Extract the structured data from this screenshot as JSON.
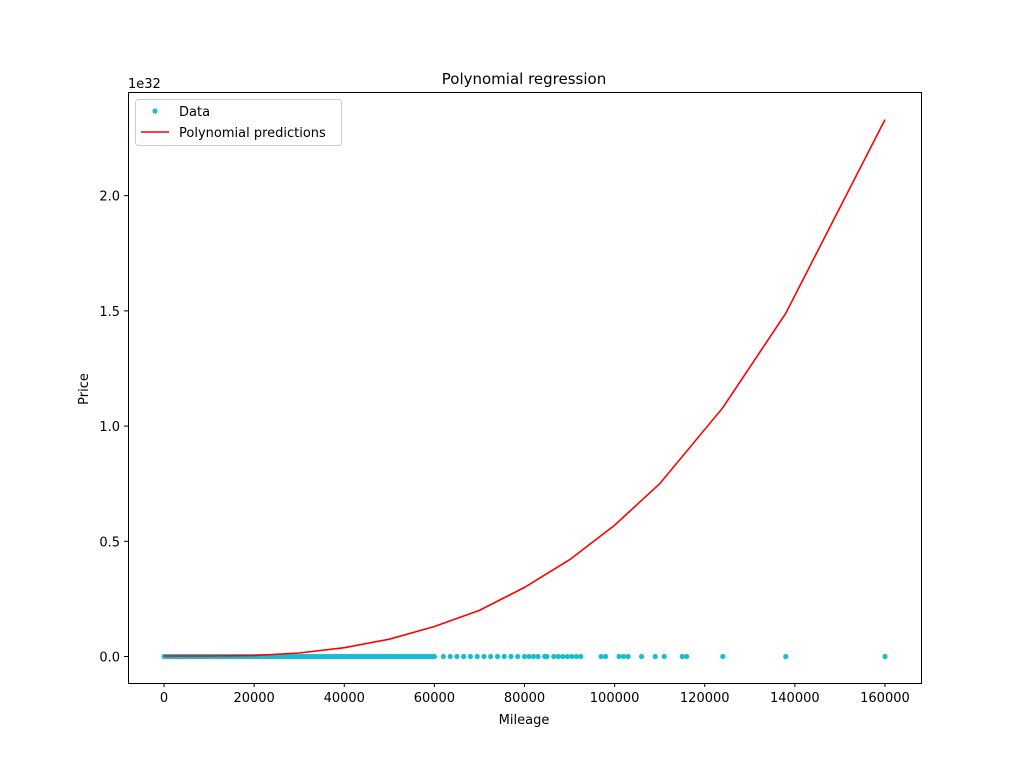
{
  "chart_data": {
    "type": "scatter",
    "title": "Polynomial regression",
    "xlabel": "Mileage",
    "ylabel": "Price",
    "y_offset_label": "1e32",
    "xlim": [
      -8000,
      168000
    ],
    "ylim": [
      -0.115,
      2.45
    ],
    "x_ticks": [
      0,
      20000,
      40000,
      60000,
      80000,
      100000,
      120000,
      140000,
      160000
    ],
    "x_tick_labels": [
      "0",
      "20000",
      "40000",
      "60000",
      "80000",
      "100000",
      "120000",
      "140000",
      "160000"
    ],
    "y_ticks": [
      0.0,
      0.5,
      1.0,
      1.5,
      2.0
    ],
    "y_tick_labels": [
      "0.0",
      "0.5",
      "1.0",
      "1.5",
      "2.0"
    ],
    "grid": false,
    "legend_position": "top-left",
    "series": [
      {
        "name": "Data",
        "kind": "scatter",
        "color": "#17becf",
        "dense_x_range": [
          0,
          60000
        ],
        "points": [
          [
            62000,
            0
          ],
          [
            63500,
            0
          ],
          [
            65000,
            0
          ],
          [
            66500,
            0
          ],
          [
            68000,
            0
          ],
          [
            69500,
            0
          ],
          [
            71000,
            0
          ],
          [
            72500,
            0
          ],
          [
            74000,
            0
          ],
          [
            75500,
            0
          ],
          [
            77000,
            0
          ],
          [
            78500,
            0
          ],
          [
            80000,
            0
          ],
          [
            81000,
            0
          ],
          [
            82000,
            0
          ],
          [
            83000,
            0
          ],
          [
            84500,
            0
          ],
          [
            85000,
            0
          ],
          [
            86500,
            0
          ],
          [
            87500,
            0
          ],
          [
            88500,
            0
          ],
          [
            89500,
            0
          ],
          [
            90500,
            0
          ],
          [
            91500,
            0
          ],
          [
            92500,
            0
          ],
          [
            97000,
            0
          ],
          [
            98000,
            0
          ],
          [
            101000,
            0
          ],
          [
            102000,
            0
          ],
          [
            103000,
            0
          ],
          [
            106000,
            0
          ],
          [
            109000,
            0
          ],
          [
            111000,
            0
          ],
          [
            115000,
            0
          ],
          [
            116000,
            0
          ],
          [
            124000,
            0
          ],
          [
            138000,
            0
          ],
          [
            160000,
            0
          ]
        ]
      },
      {
        "name": "Polynomial predictions",
        "kind": "line",
        "color": "#ff0000",
        "points": [
          [
            0,
            0.002
          ],
          [
            10000,
            0.002
          ],
          [
            20000,
            0.004
          ],
          [
            30000,
            0.015
          ],
          [
            40000,
            0.038
          ],
          [
            50000,
            0.075
          ],
          [
            60000,
            0.13
          ],
          [
            70000,
            0.2
          ],
          [
            80000,
            0.3
          ],
          [
            90000,
            0.42
          ],
          [
            100000,
            0.57
          ],
          [
            110000,
            0.75
          ],
          [
            124000,
            1.08
          ],
          [
            138000,
            1.49
          ],
          [
            160000,
            2.33
          ]
        ]
      }
    ]
  }
}
